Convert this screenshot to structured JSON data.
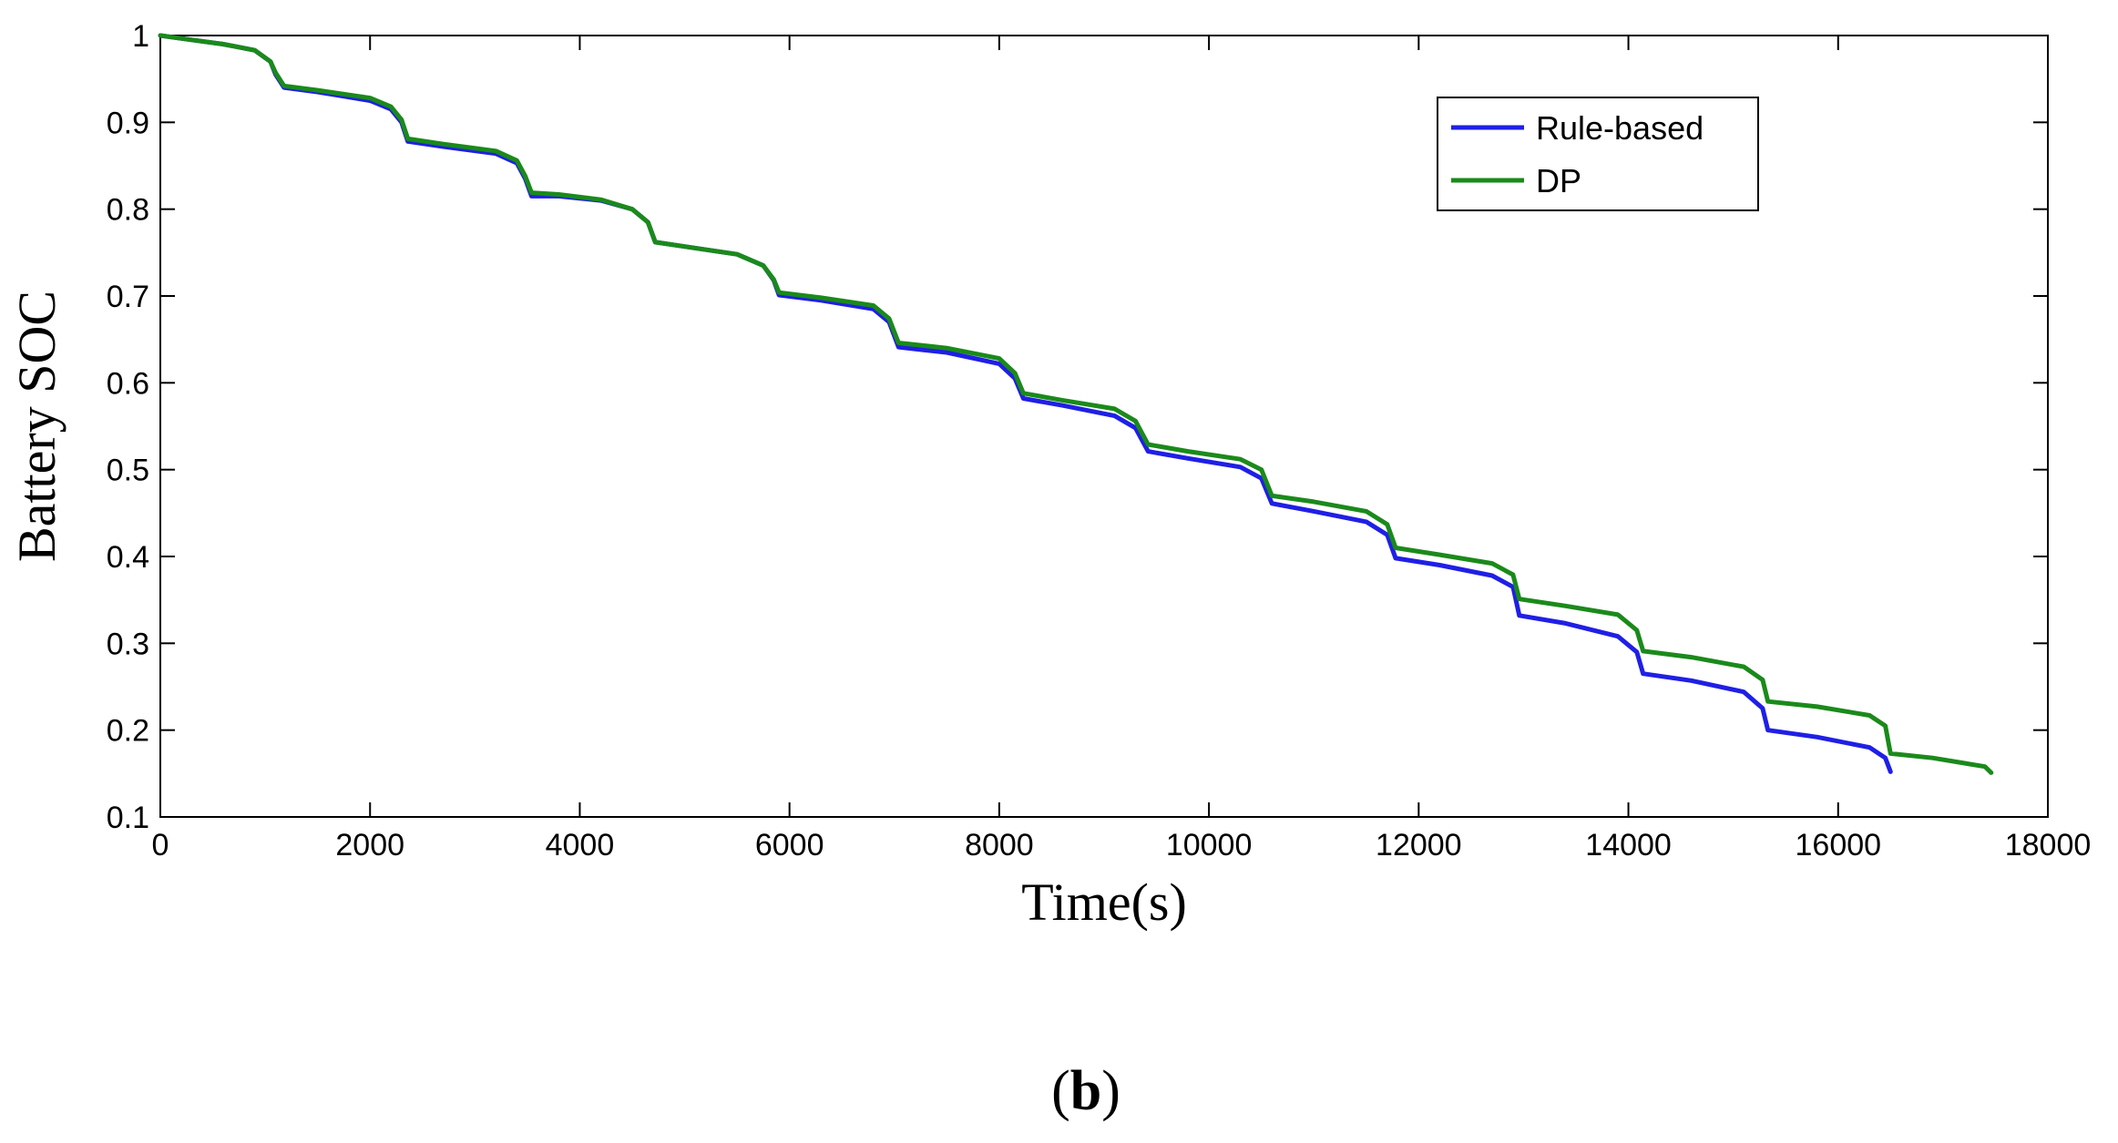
{
  "chart_data": {
    "type": "line",
    "title": "",
    "xlabel": "Time(s)",
    "ylabel": "Battery SOC",
    "xlim": [
      0,
      18000
    ],
    "ylim": [
      0.1,
      1
    ],
    "xticks": [
      0,
      2000,
      4000,
      6000,
      8000,
      10000,
      12000,
      14000,
      16000,
      18000
    ],
    "xtick_labels": [
      "0",
      "2000",
      "4000",
      "6000",
      "8000",
      "10000",
      "12000",
      "14000",
      "16000",
      "18000"
    ],
    "yticks": [
      0.1,
      0.2,
      0.3,
      0.4,
      0.5,
      0.6,
      0.7,
      0.8,
      0.9,
      1
    ],
    "ytick_labels": [
      "0.1",
      "0.2",
      "0.3",
      "0.4",
      "0.5",
      "0.6",
      "0.7",
      "0.8",
      "0.9",
      "1"
    ],
    "grid": false,
    "legend_position": "top-right",
    "series": [
      {
        "name": "Rule-based",
        "color": "#1f1fe6",
        "x": [
          0,
          300,
          600,
          900,
          1050,
          1100,
          1180,
          1500,
          2000,
          2200,
          2300,
          2360,
          2700,
          3200,
          3400,
          3480,
          3540,
          3800,
          4200,
          4500,
          4650,
          4720,
          5000,
          5500,
          5750,
          5850,
          5900,
          6300,
          6800,
          6950,
          7040,
          7500,
          8000,
          8150,
          8230,
          8600,
          9100,
          9300,
          9420,
          9800,
          10300,
          10500,
          10600,
          11000,
          11500,
          11700,
          11780,
          12200,
          12700,
          12900,
          12960,
          13400,
          13900,
          14080,
          14140,
          14600,
          15100,
          15280,
          15330,
          15800,
          16300,
          16450,
          16500
        ],
        "values": [
          1.0,
          0.995,
          0.99,
          0.983,
          0.97,
          0.955,
          0.94,
          0.935,
          0.925,
          0.915,
          0.9,
          0.878,
          0.872,
          0.864,
          0.853,
          0.835,
          0.815,
          0.815,
          0.81,
          0.8,
          0.785,
          0.762,
          0.757,
          0.748,
          0.735,
          0.718,
          0.701,
          0.695,
          0.685,
          0.67,
          0.641,
          0.635,
          0.622,
          0.605,
          0.582,
          0.574,
          0.562,
          0.548,
          0.521,
          0.513,
          0.503,
          0.49,
          0.461,
          0.452,
          0.44,
          0.425,
          0.398,
          0.39,
          0.378,
          0.365,
          0.332,
          0.323,
          0.308,
          0.29,
          0.265,
          0.257,
          0.244,
          0.225,
          0.2,
          0.192,
          0.18,
          0.168,
          0.152
        ]
      },
      {
        "name": "DP",
        "color": "#1a8a1a",
        "x": [
          0,
          300,
          600,
          900,
          1050,
          1100,
          1180,
          1500,
          2000,
          2200,
          2300,
          2360,
          2700,
          3200,
          3400,
          3480,
          3540,
          3800,
          4200,
          4500,
          4650,
          4720,
          5000,
          5500,
          5750,
          5850,
          5900,
          6300,
          6800,
          6950,
          7040,
          7500,
          8000,
          8150,
          8230,
          8600,
          9100,
          9300,
          9420,
          9800,
          10300,
          10500,
          10600,
          11000,
          11500,
          11700,
          11780,
          12200,
          12700,
          12900,
          12960,
          13400,
          13900,
          14080,
          14140,
          14600,
          15100,
          15280,
          15330,
          15800,
          16300,
          16450,
          16500,
          16900,
          17400,
          17460
        ],
        "values": [
          1.0,
          0.995,
          0.99,
          0.983,
          0.97,
          0.957,
          0.942,
          0.937,
          0.928,
          0.918,
          0.903,
          0.881,
          0.875,
          0.867,
          0.856,
          0.838,
          0.819,
          0.817,
          0.811,
          0.8,
          0.785,
          0.762,
          0.757,
          0.748,
          0.735,
          0.719,
          0.704,
          0.698,
          0.689,
          0.674,
          0.646,
          0.64,
          0.628,
          0.611,
          0.588,
          0.58,
          0.57,
          0.556,
          0.529,
          0.521,
          0.512,
          0.5,
          0.47,
          0.463,
          0.452,
          0.437,
          0.41,
          0.402,
          0.392,
          0.379,
          0.351,
          0.343,
          0.333,
          0.315,
          0.291,
          0.284,
          0.273,
          0.258,
          0.233,
          0.227,
          0.217,
          0.205,
          0.173,
          0.168,
          0.158,
          0.151
        ]
      }
    ]
  },
  "panel_label": {
    "open": "(",
    "letter": "b",
    "close": ")"
  }
}
